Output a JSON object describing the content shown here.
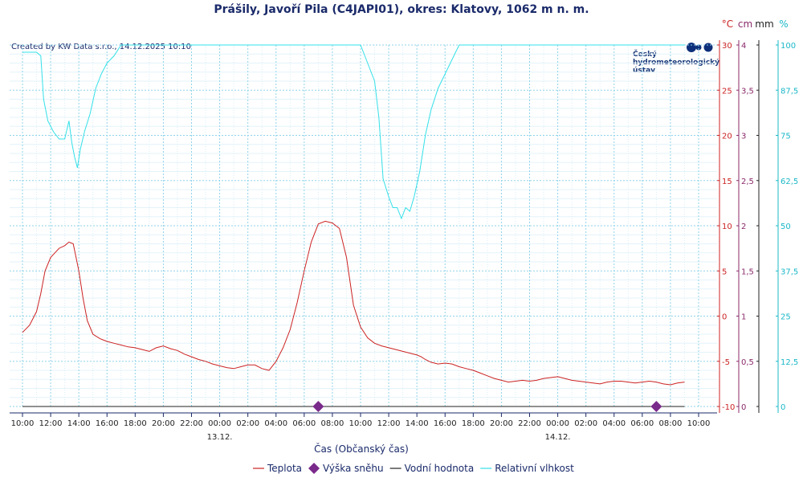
{
  "chart_data": {
    "type": "line",
    "title": "Prášily, Javoří Pila (C4JAPI01), okres: Klatovy, 1062 m n. m.",
    "credit": "Created by KW Data s.r.o., 14.12.2025 10:10",
    "logo_lines": [
      "Český",
      "hydrometeorologický",
      "ústav"
    ],
    "xlabel": "Čas (Občanský čas)",
    "x_range_hours": [
      0,
      48
    ],
    "x_tick_labels": [
      "10:00",
      "12:00",
      "14:00",
      "16:00",
      "18:00",
      "20:00",
      "22:00",
      "00:00",
      "02:00",
      "04:00",
      "06:00",
      "08:00",
      "10:00",
      "12:00",
      "14:00",
      "16:00",
      "18:00",
      "20:00",
      "22:00",
      "00:00",
      "02:00",
      "04:00",
      "06:00",
      "08:00",
      "10:00"
    ],
    "date_labels": [
      {
        "text": "13.12.",
        "hour": 14
      },
      {
        "text": "14.12.",
        "hour": 38
      }
    ],
    "axes": {
      "temperature": {
        "unit": "°C",
        "range": [
          -10,
          30
        ],
        "ticks": [
          "-10",
          "-5",
          "0",
          "5",
          "10",
          "15",
          "20",
          "25",
          "30"
        ],
        "color": "#cc2222"
      },
      "snow_depth": {
        "unit": "cm",
        "range": [
          0,
          4
        ],
        "ticks": [
          "0",
          "0,5",
          "1",
          "1,5",
          "2",
          "2,5",
          "3",
          "3,5",
          "4"
        ],
        "color": "#8b2a6a"
      },
      "water_value": {
        "unit": "mm",
        "color": "#222222"
      },
      "humidity": {
        "unit": "%",
        "range": [
          0,
          100
        ],
        "ticks": [
          "0",
          "12,5",
          "25",
          "37,5",
          "50",
          "62,5",
          "75",
          "87,5",
          "100"
        ],
        "color": "#1ab8c8"
      }
    },
    "grid": true,
    "legend_position": "bottom",
    "series": [
      {
        "name": "Teplota",
        "axis": "temperature",
        "color": "#cc2222",
        "x": [
          0,
          0.5,
          1,
          1.3,
          1.6,
          2,
          2.3,
          2.6,
          3,
          3.3,
          3.6,
          4,
          4.3,
          4.6,
          5,
          5.5,
          6,
          6.5,
          7,
          7.5,
          8,
          8.5,
          9,
          9.5,
          10,
          10.5,
          11,
          11.5,
          12,
          12.5,
          13,
          13.5,
          14,
          14.5,
          15,
          15.5,
          16,
          16.5,
          17,
          17.5,
          18,
          18.5,
          19,
          19.5,
          20,
          20.5,
          21,
          21.5,
          22,
          22.5,
          23,
          23.5,
          24,
          24.5,
          25,
          25.5,
          26,
          26.5,
          27,
          27.5,
          28,
          28.3,
          28.6,
          29,
          29.5,
          30,
          30.5,
          31,
          31.5,
          32,
          32.5,
          33,
          33.5,
          34,
          34.5,
          35,
          35.5,
          36,
          36.5,
          37,
          37.5,
          38,
          38.5,
          39,
          39.5,
          40,
          40.5,
          41,
          41.5,
          42,
          42.5,
          43,
          43.5,
          44,
          44.5,
          45,
          45.5,
          46,
          46.5,
          47
        ],
        "values": [
          -1.8,
          -1,
          0.5,
          2.5,
          5,
          6.5,
          7,
          7.5,
          7.8,
          8.2,
          8,
          5,
          2,
          -0.5,
          -2,
          -2.5,
          -2.8,
          -3,
          -3.2,
          -3.4,
          -3.5,
          -3.7,
          -3.9,
          -3.5,
          -3.3,
          -3.6,
          -3.8,
          -4.2,
          -4.5,
          -4.8,
          -5,
          -5.3,
          -5.5,
          -5.7,
          -5.8,
          -5.6,
          -5.4,
          -5.4,
          -5.8,
          -6,
          -5,
          -3.5,
          -1.5,
          1.5,
          5,
          8.2,
          10.2,
          10.5,
          10.3,
          9.7,
          6.5,
          1.2,
          -1.2,
          -2.4,
          -3,
          -3.3,
          -3.5,
          -3.7,
          -3.9,
          -4.1,
          -4.3,
          -4.5,
          -4.8,
          -5.1,
          -5.3,
          -5.2,
          -5.3,
          -5.6,
          -5.8,
          -6,
          -6.3,
          -6.6,
          -6.9,
          -7.1,
          -7.3,
          -7.2,
          -7.1,
          -7.2,
          -7.1,
          -6.9,
          -6.8,
          -6.7,
          -6.9,
          -7.1,
          -7.2,
          -7.3,
          -7.4,
          -7.5,
          -7.3,
          -7.2,
          -7.2,
          -7.3,
          -7.4,
          -7.3,
          -7.2,
          -7.3,
          -7.5,
          -7.6,
          -7.4,
          -7.3
        ],
        "values_note_removed": true
      },
      {
        "name": "Relativní vlhkost",
        "axis": "humidity",
        "color": "#33e0e8",
        "x": [
          0,
          0.5,
          1,
          1.3,
          1.5,
          1.8,
          2.2,
          2.6,
          3,
          3.3,
          3.5,
          3.7,
          3.9,
          4.1,
          4.4,
          4.8,
          5.2,
          5.6,
          6,
          6.5,
          7,
          8,
          10,
          12,
          14,
          16,
          18,
          20,
          22,
          23,
          24,
          24.5,
          25,
          25.3,
          25.6,
          26,
          26.3,
          26.6,
          26.9,
          27.2,
          27.5,
          27.8,
          28.2,
          28.6,
          29,
          29.5,
          30,
          30.5,
          31,
          31.5,
          32,
          33,
          34,
          36,
          38,
          40,
          42,
          44,
          46,
          47
        ],
        "values": [
          98,
          98,
          98,
          97,
          85,
          79,
          76,
          74,
          74,
          79,
          73,
          69,
          66,
          71,
          76,
          81,
          88,
          92,
          95,
          97,
          100,
          100,
          100,
          100,
          100,
          100,
          100,
          100,
          100,
          100,
          100,
          95,
          90,
          80,
          63,
          58,
          55,
          55,
          52,
          55,
          54,
          58,
          65,
          75,
          82,
          88,
          92,
          96,
          100,
          100,
          100,
          100,
          100,
          100,
          100,
          100,
          100,
          100,
          100,
          100
        ]
      },
      {
        "name": "Vodní hodnota",
        "axis": "snow_depth",
        "color": "#222222",
        "x": [
          0,
          47
        ],
        "values": [
          0,
          0
        ]
      },
      {
        "name": "Výška sněhu",
        "axis": "snow_depth",
        "color": "#7a2a8a",
        "marker": "diamond",
        "x": [
          21,
          45
        ],
        "values": [
          0,
          0
        ]
      }
    ]
  },
  "legend": [
    {
      "label": "Teplota",
      "color": "#cc2222",
      "kind": "line"
    },
    {
      "label": "Výška sněhu",
      "color": "#7a2a8a",
      "kind": "diamond"
    },
    {
      "label": "Vodní hodnota",
      "color": "#222222",
      "kind": "line"
    },
    {
      "label": "Relativní vlhkost",
      "color": "#33e0e8",
      "kind": "line"
    }
  ]
}
